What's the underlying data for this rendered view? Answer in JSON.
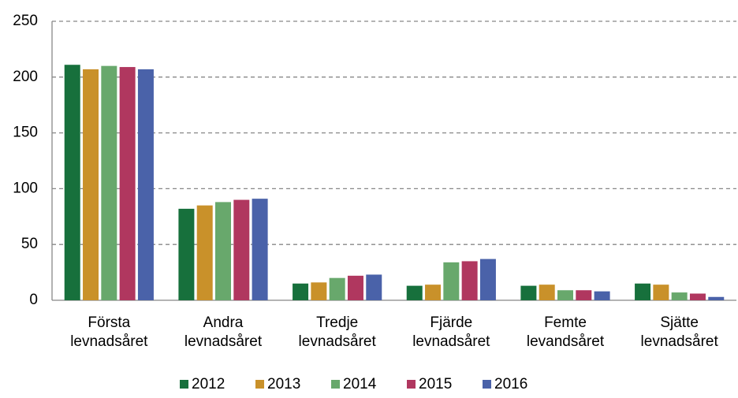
{
  "chart_data": {
    "type": "bar",
    "categories": [
      "Första levnadsåret",
      "Andra levnadsåret",
      "Tredje levnadsåret",
      "Fjärde levnadsåret",
      "Femte levandsåret",
      "Sjätte levnadsåret"
    ],
    "series": [
      {
        "name": "2012",
        "color": "#17703c",
        "values": [
          211,
          82,
          15,
          13,
          13,
          15
        ]
      },
      {
        "name": "2013",
        "color": "#c9912a",
        "values": [
          207,
          85,
          16,
          14,
          14,
          14
        ]
      },
      {
        "name": "2014",
        "color": "#68a86c",
        "values": [
          210,
          88,
          20,
          34,
          9,
          7
        ]
      },
      {
        "name": "2015",
        "color": "#b0375f",
        "values": [
          209,
          90,
          22,
          35,
          9,
          6
        ]
      },
      {
        "name": "2016",
        "color": "#4a62a9",
        "values": [
          207,
          91,
          23,
          37,
          8,
          3
        ]
      }
    ],
    "ylim": [
      0,
      250
    ],
    "yticks": [
      0,
      50,
      100,
      150,
      200,
      250
    ],
    "grid": true,
    "legend": "bottom"
  }
}
